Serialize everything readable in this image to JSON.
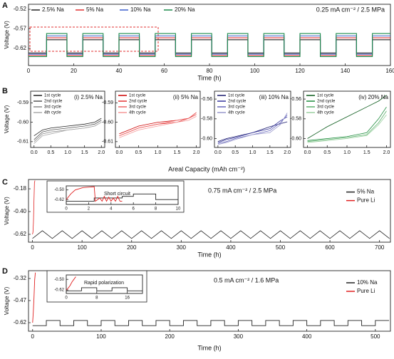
{
  "chart_data": [
    {
      "type": "line",
      "panel": "A",
      "xlabel": "Time (h)",
      "ylabel": "Voltage (V)",
      "note": "0.25 mA cm⁻² / 2.5 MPa",
      "legend": "top",
      "xlim": [
        0,
        160
      ],
      "xticks": [
        0,
        20,
        40,
        60,
        80,
        100,
        120,
        140,
        160
      ],
      "ylim": [
        -0.664,
        -0.507
      ],
      "yticks": [
        -0.52,
        -0.57,
        -0.62
      ],
      "x": [
        0,
        8,
        8,
        17,
        17,
        24,
        24,
        33,
        33,
        40,
        40,
        49,
        49,
        56,
        56,
        65,
        65,
        72,
        72,
        81,
        81,
        88,
        88,
        97,
        97,
        104,
        104,
        113,
        113,
        120,
        120,
        129,
        129,
        136,
        136,
        145,
        145,
        152,
        152,
        160
      ],
      "series": [
        {
          "name": "2.5% Na",
          "color": "#222222",
          "values": [
            -0.632,
            -0.632,
            -0.598,
            -0.598,
            -0.632,
            -0.632,
            -0.598,
            -0.598,
            -0.632,
            -0.632,
            -0.598,
            -0.598,
            -0.632,
            -0.632,
            -0.598,
            -0.598,
            -0.632,
            -0.632,
            -0.598,
            -0.598,
            -0.632,
            -0.632,
            -0.598,
            -0.598,
            -0.632,
            -0.632,
            -0.598,
            -0.598,
            -0.632,
            -0.632,
            -0.598,
            -0.598,
            -0.632,
            -0.632,
            -0.598,
            -0.598,
            -0.632,
            -0.632,
            -0.598,
            -0.598
          ]
        },
        {
          "name": "5% Na",
          "color": "#e03030",
          "values": [
            -0.638,
            -0.638,
            -0.593,
            -0.593,
            -0.638,
            -0.638,
            -0.593,
            -0.593,
            -0.638,
            -0.638,
            -0.593,
            -0.593,
            -0.638,
            -0.638,
            -0.593,
            -0.593,
            -0.638,
            -0.638,
            -0.593,
            -0.593,
            -0.638,
            -0.638,
            -0.593,
            -0.593,
            -0.638,
            -0.638,
            -0.593,
            -0.593,
            -0.638,
            -0.638,
            -0.593,
            -0.593,
            -0.638,
            -0.638,
            -0.593,
            -0.593,
            -0.638,
            -0.638,
            -0.593,
            -0.593
          ]
        },
        {
          "name": "10% Na",
          "color": "#3a5fcd",
          "values": [
            -0.635,
            -0.635,
            -0.588,
            -0.588,
            -0.635,
            -0.635,
            -0.588,
            -0.588,
            -0.635,
            -0.635,
            -0.588,
            -0.588,
            -0.635,
            -0.635,
            -0.588,
            -0.588,
            -0.635,
            -0.635,
            -0.588,
            -0.588,
            -0.635,
            -0.635,
            -0.588,
            -0.588,
            -0.635,
            -0.635,
            -0.588,
            -0.588,
            -0.635,
            -0.635,
            -0.588,
            -0.588,
            -0.635,
            -0.635,
            -0.588,
            -0.588,
            -0.635,
            -0.635,
            -0.588,
            -0.588
          ]
        },
        {
          "name": "20% Na",
          "color": "#1a8a4a",
          "values": [
            -0.641,
            -0.641,
            -0.582,
            -0.582,
            -0.641,
            -0.641,
            -0.582,
            -0.582,
            -0.641,
            -0.641,
            -0.582,
            -0.582,
            -0.641,
            -0.641,
            -0.582,
            -0.582,
            -0.641,
            -0.641,
            -0.582,
            -0.582,
            -0.641,
            -0.641,
            -0.582,
            -0.582,
            -0.641,
            -0.641,
            -0.582,
            -0.582,
            -0.641,
            -0.641,
            -0.582,
            -0.582,
            -0.641,
            -0.641,
            -0.582,
            -0.582,
            -0.641,
            -0.641,
            -0.582,
            -0.582
          ]
        }
      ]
    },
    {
      "type": "line",
      "panel": "B",
      "title": "(i) 2.5% Na",
      "ylabel": "Voltage (V)",
      "legend": "upper left",
      "xlim": [
        -0.1,
        2.1
      ],
      "xticks": [
        {
          "value": 0,
          "label": "0.0"
        },
        0.5,
        {
          "value": 1,
          "label": "1.0"
        },
        1.5,
        {
          "value": 2,
          "label": "2.0"
        }
      ],
      "ylim": [
        -0.613,
        -0.584
      ],
      "yticks": [
        -0.59,
        {
          "value": -0.6,
          "label": "-0.60"
        },
        -0.61
      ],
      "x": [
        0,
        0.25,
        0.5,
        1,
        1.5,
        1.8,
        2
      ],
      "series": [
        {
          "name": "1st cycle",
          "color": "#222222",
          "values": [
            -0.607,
            -0.604,
            -0.603,
            -0.602,
            -0.601,
            -0.6,
            -0.598
          ]
        },
        {
          "name": "2nd cycle",
          "color": "#555555",
          "values": [
            -0.609,
            -0.605,
            -0.604,
            -0.603,
            -0.602,
            -0.601,
            -0.599
          ]
        },
        {
          "name": "3rd cycle",
          "color": "#888888",
          "values": [
            -0.61,
            -0.606,
            -0.605,
            -0.604,
            -0.603,
            -0.602,
            -0.6
          ]
        },
        {
          "name": "4th cycle",
          "color": "#aaaaaa",
          "values": [
            -0.611,
            -0.607,
            -0.606,
            -0.604,
            -0.603,
            -0.602,
            -0.6
          ]
        }
      ]
    },
    {
      "type": "line",
      "title": "(ii) 5% Na",
      "xlabel": "Areal Capacity (mAh cm⁻²)",
      "legend": "upper left",
      "xlim": [
        -0.1,
        2.1
      ],
      "xticks": [
        {
          "value": 0,
          "label": "0.0"
        },
        0.5,
        {
          "value": 1,
          "label": "1.0"
        },
        1.5,
        {
          "value": 2,
          "label": "2.0"
        }
      ],
      "ylim": [
        -0.613,
        -0.584
      ],
      "yticks": [
        -0.59,
        {
          "value": -0.6,
          "label": "-0.60"
        },
        -0.61
      ],
      "x": [
        0,
        0.25,
        0.5,
        1,
        1.5,
        1.8,
        2
      ],
      "series": [
        {
          "name": "1st cycle",
          "color": "#cc0000",
          "values": [
            -0.606,
            -0.604,
            -0.602,
            -0.6,
            -0.599,
            -0.598,
            -0.596
          ]
        },
        {
          "name": "2nd cycle",
          "color": "#e33333",
          "values": [
            -0.607,
            -0.605,
            -0.603,
            -0.601,
            -0.6,
            -0.598,
            -0.595
          ]
        },
        {
          "name": "3rd cycle",
          "color": "#ee6666",
          "values": [
            -0.607,
            -0.605,
            -0.603,
            -0.601,
            -0.599,
            -0.598,
            -0.596
          ]
        },
        {
          "name": "4th cycle",
          "color": "#f59999",
          "values": [
            -0.608,
            -0.606,
            -0.604,
            -0.602,
            -0.6,
            -0.599,
            -0.597
          ]
        }
      ]
    },
    {
      "type": "line",
      "title": "(iii) 10% Na",
      "legend": "upper left",
      "xlim": [
        -0.1,
        2.1
      ],
      "xticks": [
        {
          "value": 0,
          "label": "0.0"
        },
        0.5,
        {
          "value": 1,
          "label": "1.0"
        },
        1.5,
        {
          "value": 2,
          "label": "2.0"
        }
      ],
      "ylim": [
        -0.609,
        -0.552
      ],
      "yticks": [
        -0.56,
        -0.58,
        {
          "value": -0.6,
          "label": "-0.60"
        }
      ],
      "x": [
        0,
        0.25,
        0.5,
        1,
        1.5,
        1.8,
        2
      ],
      "series": [
        {
          "name": "1st cycle",
          "color": "#1a1a6e",
          "values": [
            -0.603,
            -0.6,
            -0.598,
            -0.594,
            -0.588,
            -0.585,
            -0.583
          ]
        },
        {
          "name": "2nd cycle",
          "color": "#33339a",
          "values": [
            -0.604,
            -0.601,
            -0.599,
            -0.594,
            -0.59,
            -0.582,
            -0.578
          ]
        },
        {
          "name": "3rd cycle",
          "color": "#6666bb",
          "values": [
            -0.605,
            -0.603,
            -0.6,
            -0.596,
            -0.592,
            -0.584,
            -0.576
          ]
        },
        {
          "name": "4th cycle",
          "color": "#9999cc",
          "values": [
            -0.606,
            -0.604,
            -0.601,
            -0.596,
            -0.594,
            -0.586,
            -0.574
          ]
        }
      ]
    },
    {
      "type": "line",
      "title": "(iv) 20% Na",
      "legend": "upper left",
      "xlim": [
        -0.1,
        2.1
      ],
      "xticks": [
        {
          "value": 0,
          "label": "0.0"
        },
        0.5,
        {
          "value": 1,
          "label": "1.0"
        },
        1.5,
        {
          "value": 2,
          "label": "2.0"
        }
      ],
      "ylim": [
        -0.609,
        -0.552
      ],
      "yticks": [
        -0.56,
        -0.58,
        {
          "value": -0.6,
          "label": "-0.60"
        }
      ],
      "x": [
        0,
        0.25,
        0.5,
        1,
        1.5,
        1.8,
        2
      ],
      "series": [
        {
          "name": "1st cycle",
          "color": "#0a5a1a",
          "values": [
            -0.6,
            -0.594,
            -0.588,
            -0.578,
            -0.568,
            -0.562,
            -0.556
          ]
        },
        {
          "name": "2nd cycle",
          "color": "#1a8a3a",
          "values": [
            -0.602,
            -0.601,
            -0.6,
            -0.598,
            -0.594,
            -0.58,
            -0.568
          ]
        },
        {
          "name": "3rd cycle",
          "color": "#5ab06a",
          "values": [
            -0.603,
            -0.602,
            -0.601,
            -0.599,
            -0.596,
            -0.584,
            -0.572
          ]
        },
        {
          "name": "4th cycle",
          "color": "#9ad0a0",
          "values": [
            -0.604,
            -0.603,
            -0.602,
            -0.6,
            -0.597,
            -0.586,
            -0.576
          ]
        }
      ]
    },
    {
      "type": "line",
      "panel": "C",
      "xlabel": "Time (h)",
      "ylabel": "Voltage (V)",
      "note": "0.75 mA cm⁻² / 2.5 MPa",
      "legend": "right",
      "xlim": [
        -8,
        722
      ],
      "xticks": [
        0,
        100,
        200,
        300,
        400,
        500,
        600,
        700
      ],
      "ylim": [
        -0.696,
        -0.09
      ],
      "yticks": [
        -0.18,
        {
          "value": -0.4,
          "label": "-0.40"
        },
        -0.62
      ],
      "series": [
        {
          "name": "5% Na",
          "color": "#222222",
          "x": [
            0,
            20,
            40,
            60,
            80,
            100,
            120,
            140,
            160,
            180,
            200,
            220,
            240,
            260,
            280,
            300,
            320,
            340,
            360,
            380,
            400,
            420,
            440,
            460,
            480,
            500,
            520,
            540,
            560,
            580,
            600,
            620,
            640,
            660,
            680,
            700,
            720
          ],
          "values": [
            -0.66,
            -0.585,
            -0.66,
            -0.585,
            -0.66,
            -0.585,
            -0.66,
            -0.585,
            -0.66,
            -0.585,
            -0.66,
            -0.585,
            -0.66,
            -0.585,
            -0.66,
            -0.585,
            -0.66,
            -0.585,
            -0.66,
            -0.585,
            -0.66,
            -0.585,
            -0.66,
            -0.585,
            -0.66,
            -0.585,
            -0.66,
            -0.585,
            -0.66,
            -0.585,
            -0.66,
            -0.585,
            -0.66,
            -0.585,
            -0.66,
            -0.585,
            -0.66
          ]
        },
        {
          "name": "Pure Li",
          "color": "#e02020",
          "x": [
            0,
            1,
            2,
            3,
            4,
            5
          ],
          "values": [
            -0.62,
            -0.6,
            -0.5,
            -0.3,
            -0.12,
            -0.1
          ]
        }
      ]
    },
    {
      "type": "line",
      "note": "Short circuit",
      "note_color": "#e02020",
      "xlim": [
        0,
        10
      ],
      "xticks": [
        0,
        2,
        4,
        6,
        8,
        10
      ],
      "ylim": [
        -0.68,
        -0.45
      ],
      "yticks": [
        {
          "value": -0.5,
          "label": "-0.50"
        },
        -0.62
      ],
      "series": [
        {
          "color": "#222222",
          "x": [
            0,
            2.5,
            2.5,
            5,
            5,
            6,
            6,
            8,
            8,
            10
          ],
          "values": [
            -0.64,
            -0.64,
            -0.6,
            -0.6,
            -0.58,
            -0.58,
            -0.55,
            -0.55,
            -0.62,
            -0.62
          ]
        },
        {
          "color": "#e02020",
          "x": [
            0,
            0.4,
            0.8,
            1.5,
            2.5,
            2.6,
            3,
            3.2,
            3.4,
            3.6,
            3.8,
            4,
            4.2,
            4.4,
            4.6,
            4.8,
            5
          ],
          "values": [
            -0.62,
            -0.55,
            -0.5,
            -0.47,
            -0.46,
            -0.64,
            -0.6,
            -0.64,
            -0.58,
            -0.64,
            -0.59,
            -0.64,
            -0.6,
            -0.64,
            -0.58,
            -0.64,
            -0.64
          ]
        }
      ]
    },
    {
      "type": "line",
      "panel": "D",
      "xlabel": "Time (h)",
      "ylabel": "Voltage (V)",
      "note": "0.5 mA cm⁻² / 1.6 MPa",
      "legend": "right",
      "xlim": [
        -6,
        522
      ],
      "xticks": [
        0,
        100,
        200,
        300,
        400,
        500
      ],
      "ylim": [
        -0.678,
        -0.267
      ],
      "yticks": [
        -0.32,
        -0.47,
        -0.62
      ],
      "series": [
        {
          "name": "10% Na",
          "color": "#222222",
          "x": [
            0,
            20,
            20,
            40,
            40,
            60,
            60,
            80,
            80,
            100,
            100,
            120,
            120,
            140,
            140,
            160,
            160,
            180,
            180,
            200,
            200,
            220,
            220,
            240,
            240,
            260,
            260,
            280,
            280,
            300,
            300,
            320,
            320,
            340,
            340,
            360,
            360,
            380,
            380,
            400,
            400,
            420,
            420,
            440,
            440,
            460,
            460,
            480,
            480,
            500,
            500,
            520
          ],
          "values": [
            -0.64,
            -0.64,
            -0.605,
            -0.605,
            -0.64,
            -0.64,
            -0.605,
            -0.605,
            -0.64,
            -0.64,
            -0.605,
            -0.605,
            -0.64,
            -0.64,
            -0.605,
            -0.605,
            -0.64,
            -0.64,
            -0.605,
            -0.605,
            -0.64,
            -0.64,
            -0.605,
            -0.605,
            -0.64,
            -0.64,
            -0.605,
            -0.605,
            -0.64,
            -0.64,
            -0.605,
            -0.605,
            -0.64,
            -0.64,
            -0.605,
            -0.605,
            -0.64,
            -0.64,
            -0.605,
            -0.605,
            -0.64,
            -0.64,
            -0.605,
            -0.605,
            -0.64,
            -0.64,
            -0.605,
            -0.605,
            -0.64,
            -0.64,
            -0.605,
            -0.605
          ]
        },
        {
          "name": "Pure Li",
          "color": "#e02020",
          "x": [
            0,
            1,
            2,
            3,
            4
          ],
          "values": [
            -0.62,
            -0.55,
            -0.45,
            -0.33,
            -0.28
          ]
        }
      ]
    },
    {
      "type": "line",
      "note": "Rapid polarization",
      "note_color": "#e02020",
      "xlim": [
        0,
        20
      ],
      "xticks": [
        0,
        8,
        16
      ],
      "ylim": [
        -0.66,
        -0.45
      ],
      "yticks": [
        {
          "value": -0.5,
          "label": "-0.50"
        },
        -0.62
      ],
      "series": [
        {
          "color": "#222222",
          "x": [
            0,
            4,
            4,
            8,
            8,
            12,
            12,
            16,
            16,
            20
          ],
          "values": [
            -0.63,
            -0.63,
            -0.595,
            -0.595,
            -0.63,
            -0.63,
            -0.595,
            -0.595,
            -0.63,
            -0.63
          ]
        },
        {
          "color": "#e02020",
          "x": [
            0,
            0.5,
            1,
            1.5,
            2,
            2.5
          ],
          "values": [
            -0.62,
            -0.6,
            -0.57,
            -0.53,
            -0.5,
            -0.47
          ]
        }
      ]
    }
  ]
}
